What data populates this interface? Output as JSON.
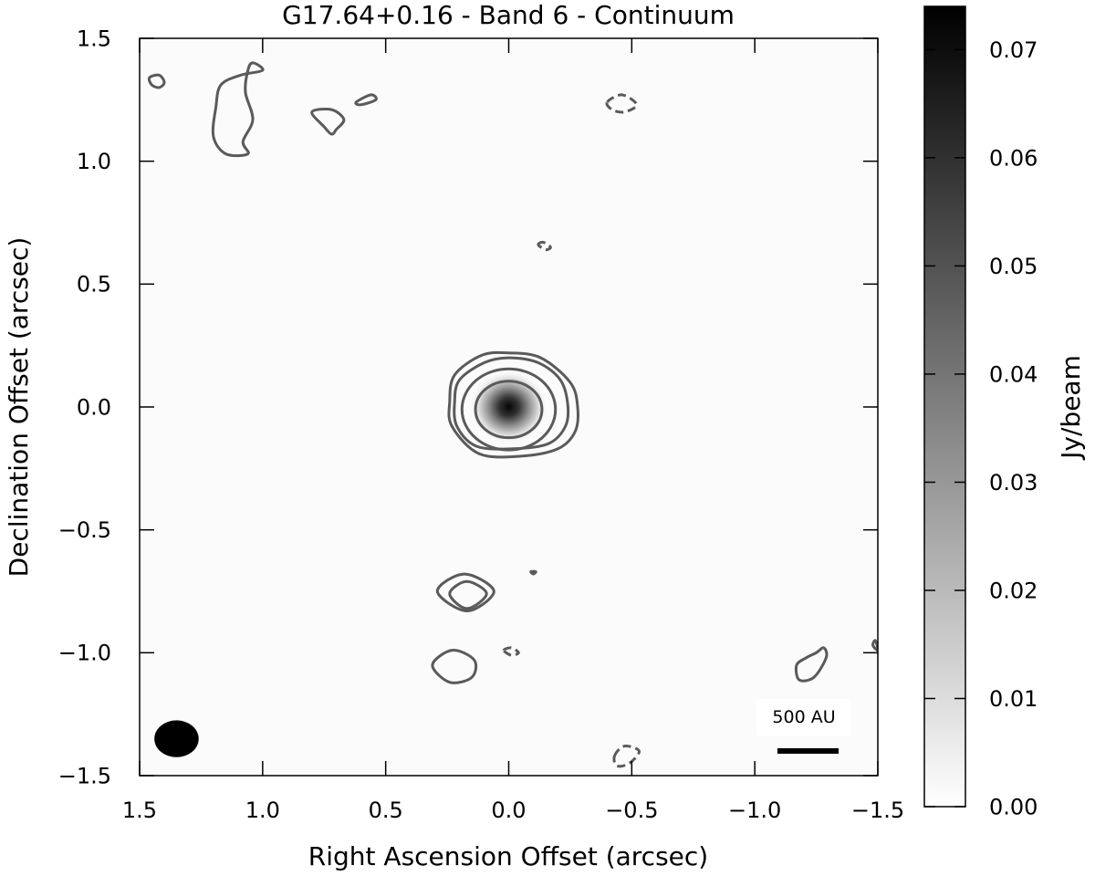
{
  "chart_data": {
    "type": "heatmap",
    "title": "G17.64+0.16 - Band 6 - Continuum",
    "xlabel": "Right Ascension Offset (arcsec)",
    "ylabel": "Declination Offset (arcsec)",
    "xlim": [
      1.5,
      -1.5
    ],
    "ylim": [
      -1.5,
      1.5
    ],
    "x_ticks": [
      1.5,
      1.0,
      0.5,
      0.0,
      -0.5,
      -1.0,
      -1.5
    ],
    "x_tick_labels": [
      "1.5",
      "1.0",
      "0.5",
      "0.0",
      "−0.5",
      "−1.0",
      "−1.5"
    ],
    "y_ticks": [
      1.5,
      1.0,
      0.5,
      0.0,
      -0.5,
      -1.0,
      -1.5
    ],
    "y_tick_labels": [
      "1.5",
      "1.0",
      "0.5",
      "0.0",
      "−0.5",
      "−1.0",
      "−1.5"
    ],
    "grid": false,
    "colormap": "greys",
    "colorbar": {
      "label": "Jy/beam",
      "range": [
        0.0,
        0.074
      ],
      "ticks": [
        0.0,
        0.01,
        0.02,
        0.03,
        0.04,
        0.05,
        0.06,
        0.07
      ],
      "tick_labels": [
        "0.00",
        "0.01",
        "0.02",
        "0.03",
        "0.04",
        "0.05",
        "0.06",
        "0.07"
      ]
    },
    "source": {
      "ra": 0.0,
      "dec": 0.0,
      "peak": 0.074
    },
    "scale_bar": {
      "label": "500 AU"
    },
    "beam": {
      "ra": 1.35,
      "dec": -1.35,
      "major": 0.18,
      "minor": 0.15
    },
    "contour_color": "#5a5a5a",
    "contours": {
      "main_rings": [
        {
          "ra": 0.0,
          "dec": -0.01,
          "ra_radius": 0.135,
          "dec_radius": 0.115
        },
        {
          "ra": 0.0,
          "dec": -0.01,
          "ra_radius": 0.19,
          "dec_radius": 0.165
        }
      ],
      "main_outer_1": [
        [
          0.22,
          0.02
        ],
        [
          0.2,
          0.11
        ],
        [
          0.1,
          0.18
        ],
        [
          0.0,
          0.2
        ],
        [
          -0.12,
          0.18
        ],
        [
          -0.21,
          0.11
        ],
        [
          -0.24,
          0.01
        ],
        [
          -0.23,
          -0.08
        ],
        [
          -0.16,
          -0.15
        ],
        [
          -0.02,
          -0.17
        ],
        [
          0.13,
          -0.16
        ],
        [
          0.21,
          -0.08
        ]
      ],
      "main_outer_2": [
        [
          0.24,
          0.02
        ],
        [
          0.22,
          0.13
        ],
        [
          0.11,
          0.21
        ],
        [
          0.0,
          0.22
        ],
        [
          -0.13,
          0.2
        ],
        [
          -0.25,
          0.1
        ],
        [
          -0.28,
          0.0
        ],
        [
          -0.27,
          -0.1
        ],
        [
          -0.2,
          -0.17
        ],
        [
          -0.05,
          -0.2
        ],
        [
          0.12,
          -0.19
        ],
        [
          0.23,
          -0.08
        ]
      ],
      "positive": [
        [
          [
            1.46,
            1.34
          ],
          [
            1.42,
            1.35
          ],
          [
            1.4,
            1.32
          ],
          [
            1.42,
            1.3
          ],
          [
            1.45,
            1.31
          ]
        ],
        [
          [
            1.0,
            1.37
          ],
          [
            1.04,
            1.4
          ],
          [
            1.06,
            1.37
          ],
          [
            1.07,
            1.28
          ],
          [
            1.04,
            1.17
          ],
          [
            1.08,
            1.08
          ],
          [
            1.06,
            1.03
          ],
          [
            1.15,
            1.03
          ],
          [
            1.2,
            1.1
          ],
          [
            1.19,
            1.22
          ],
          [
            1.17,
            1.31
          ],
          [
            1.09,
            1.35
          ]
        ],
        [
          [
            0.8,
            1.2
          ],
          [
            0.72,
            1.21
          ],
          [
            0.67,
            1.17
          ],
          [
            0.7,
            1.13
          ],
          [
            0.72,
            1.11
          ],
          [
            0.75,
            1.14
          ]
        ],
        [
          [
            0.62,
            1.24
          ],
          [
            0.56,
            1.27
          ],
          [
            0.54,
            1.25
          ],
          [
            0.6,
            1.23
          ]
        ],
        [
          [
            0.29,
            -0.75
          ],
          [
            0.18,
            -0.68
          ],
          [
            0.06,
            -0.75
          ],
          [
            0.17,
            -0.83
          ]
        ],
        [
          [
            0.24,
            -0.76
          ],
          [
            0.17,
            -0.71
          ],
          [
            0.09,
            -0.76
          ],
          [
            0.17,
            -0.82
          ]
        ],
        [
          [
            0.31,
            -1.05
          ],
          [
            0.23,
            -0.99
          ],
          [
            0.14,
            -1.03
          ],
          [
            0.15,
            -1.1
          ],
          [
            0.24,
            -1.12
          ]
        ],
        [
          [
            -1.25,
            -1.0
          ],
          [
            -1.28,
            -0.98
          ],
          [
            -1.29,
            -1.02
          ],
          [
            -1.24,
            -1.1
          ],
          [
            -1.18,
            -1.11
          ],
          [
            -1.17,
            -1.05
          ],
          [
            -1.21,
            -1.02
          ]
        ],
        [
          [
            -1.49,
            -0.95
          ],
          [
            -1.48,
            -0.97
          ],
          [
            -1.5,
            -0.99
          ]
        ],
        [
          [
            -0.09,
            -0.67
          ],
          [
            -0.11,
            -0.67
          ],
          [
            -0.1,
            -0.68
          ]
        ]
      ],
      "negative": [
        [
          [
            -0.4,
            1.24
          ],
          [
            -0.46,
            1.27
          ],
          [
            -0.52,
            1.23
          ],
          [
            -0.47,
            1.2
          ],
          [
            -0.42,
            1.21
          ]
        ],
        [
          [
            -0.12,
            0.66
          ],
          [
            -0.14,
            0.67
          ],
          [
            -0.17,
            0.65
          ],
          [
            -0.15,
            0.64
          ]
        ],
        [
          [
            0.02,
            -0.99
          ],
          [
            -0.01,
            -0.98
          ],
          [
            -0.04,
            -1.0
          ],
          [
            -0.01,
            -1.01
          ]
        ],
        [
          [
            -0.43,
            -1.42
          ],
          [
            -0.47,
            -1.38
          ],
          [
            -0.53,
            -1.4
          ],
          [
            -0.49,
            -1.45
          ],
          [
            -0.44,
            -1.46
          ]
        ]
      ]
    }
  }
}
